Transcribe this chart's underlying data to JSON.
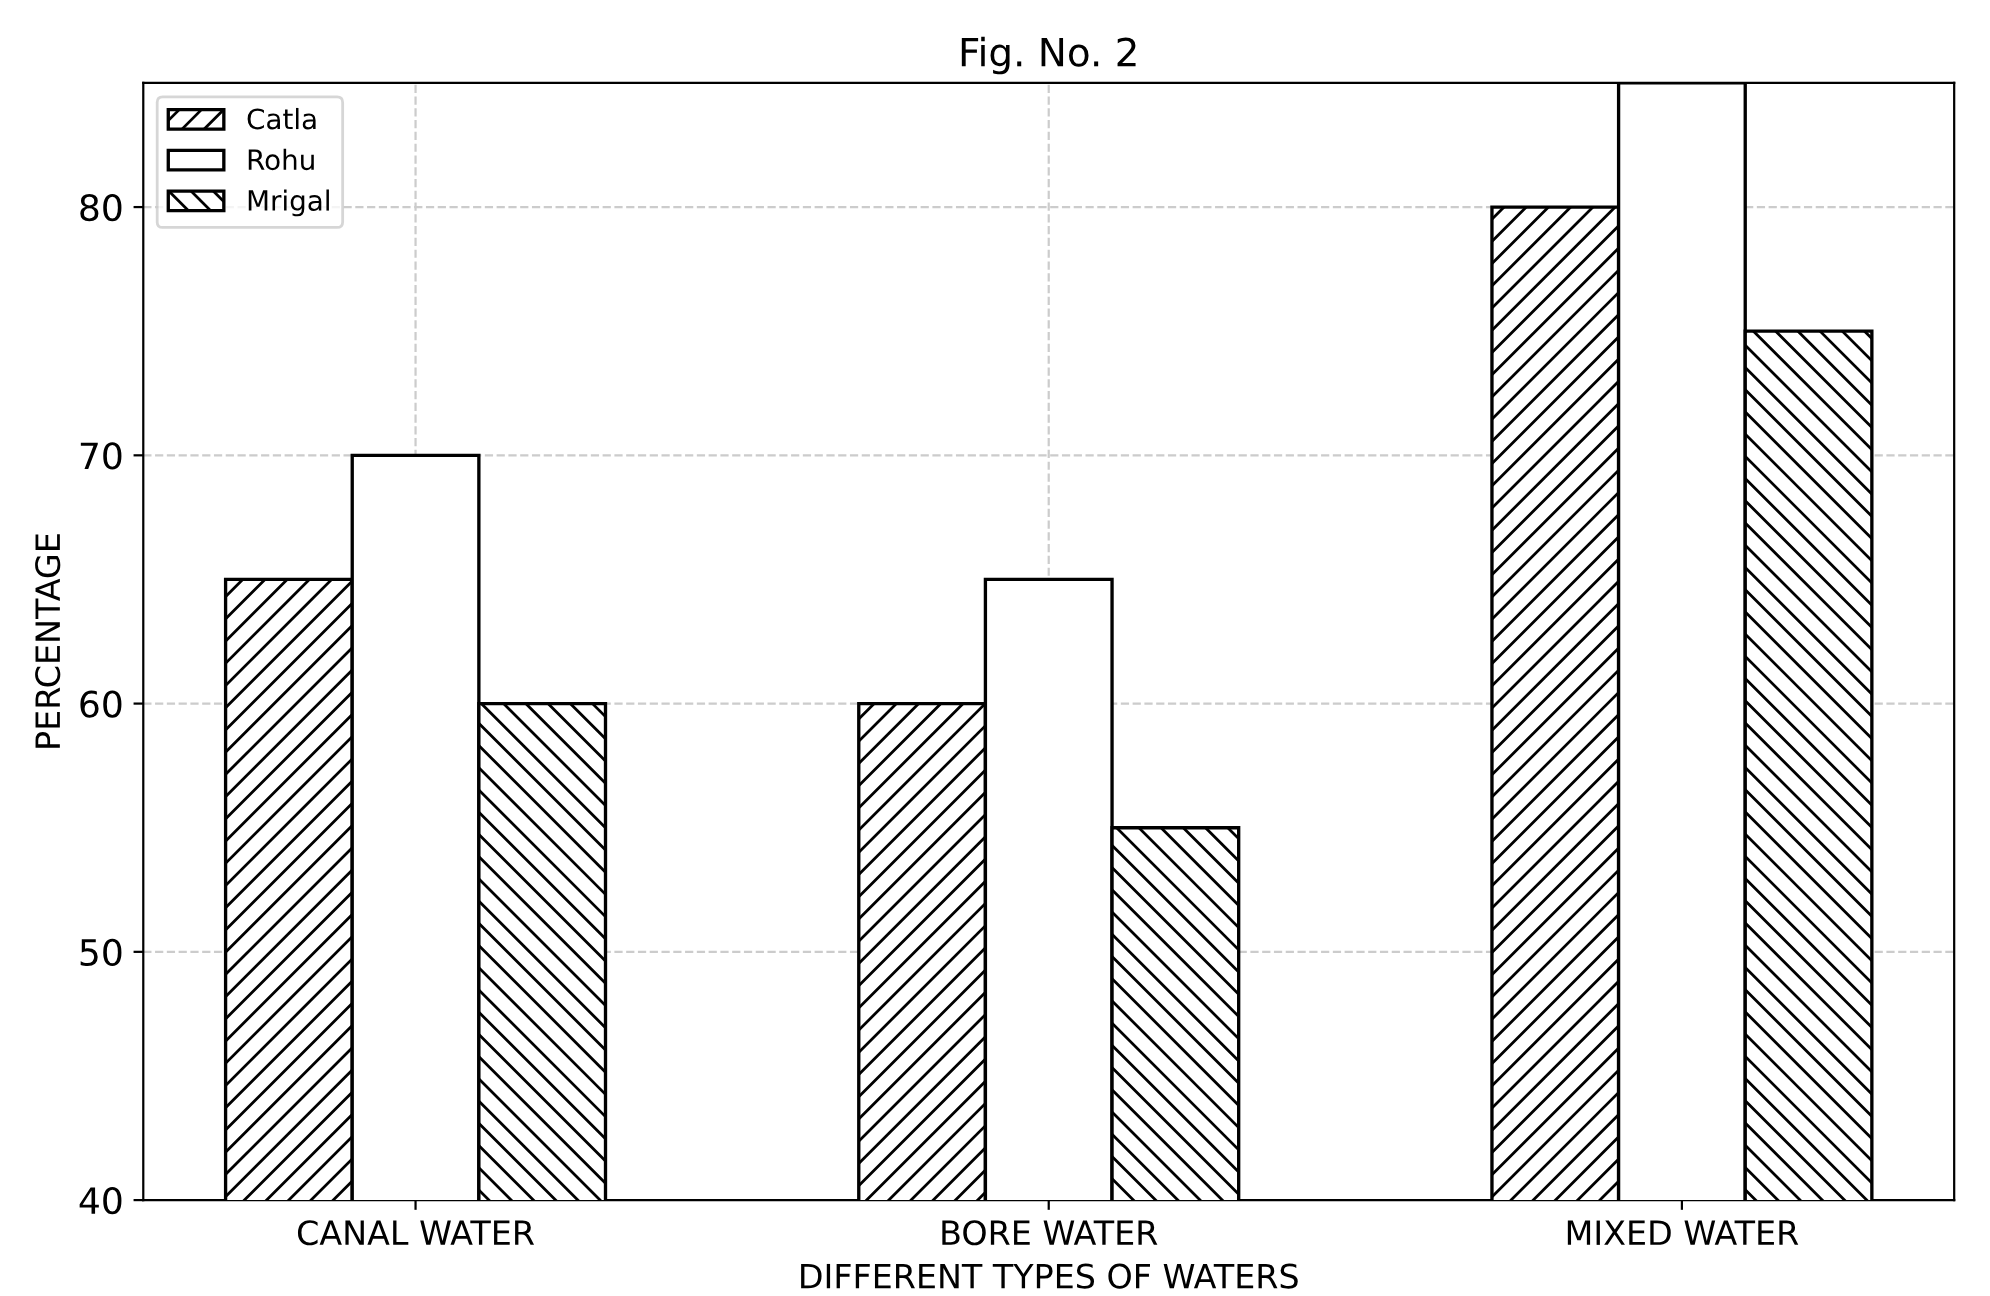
{
  "chart_data": {
    "type": "bar",
    "title": "Fig. No. 2",
    "xlabel": "DIFFERENT TYPES OF WATERS",
    "ylabel": "PERCENTAGE",
    "categories": [
      "CANAL WATER",
      "BORE WATER",
      "MIXED WATER"
    ],
    "series": [
      {
        "name": "Catla",
        "color": "#000000",
        "values": [
          65,
          60,
          80
        ]
      },
      {
        "name": "Rohu",
        "color": "#ffffff",
        "values": [
          70,
          65,
          85
        ]
      },
      {
        "name": "Mrigal",
        "color": "#000000",
        "values": [
          60,
          55,
          75
        ]
      }
    ],
    "ylim": [
      40,
      85
    ],
    "yticks": [
      40,
      50,
      60,
      70,
      80
    ],
    "grid": true,
    "legend": "top left"
  }
}
